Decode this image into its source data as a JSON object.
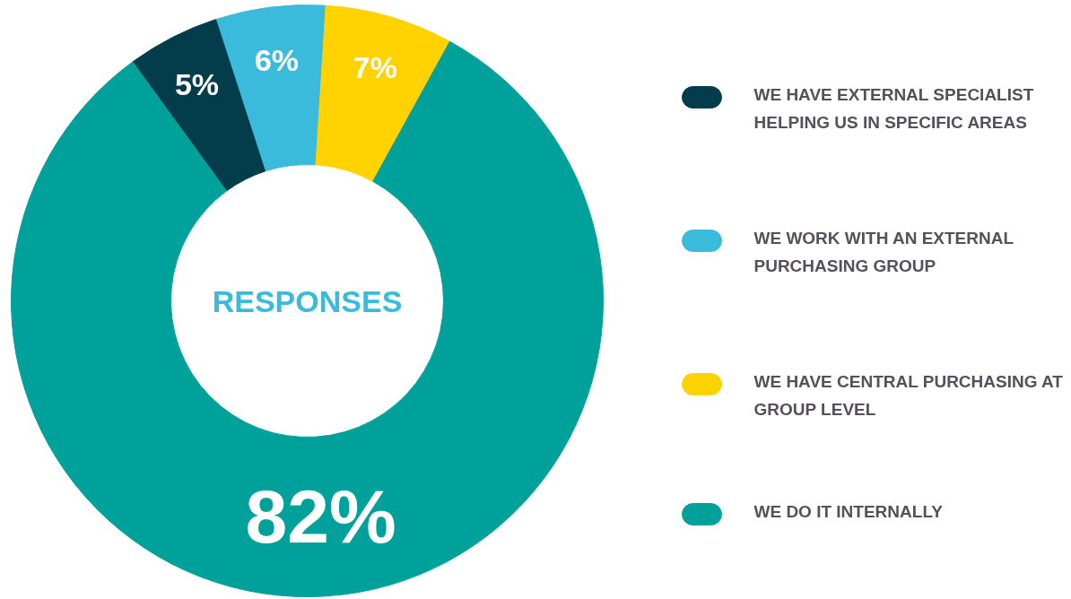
{
  "chart_data": {
    "type": "donut",
    "title": "RESPONSES",
    "categories": [
      "WE HAVE EXTERNAL SPECIALIST HELPING US IN SPECIFIC AREAS",
      "WE WORK WITH AN EXTERNAL PURCHASING GROUP",
      "WE HAVE CENTRAL PURCHASING AT GROUP LEVEL",
      "WE DO IT INTERNALLY"
    ],
    "values": [
      5,
      6,
      7,
      82
    ],
    "colors": [
      "#033d4b",
      "#3bbbdc",
      "#ffd200",
      "#00a19a"
    ],
    "value_labels": [
      "5%",
      "6%",
      "7%",
      "82%"
    ],
    "legend": "right"
  }
}
